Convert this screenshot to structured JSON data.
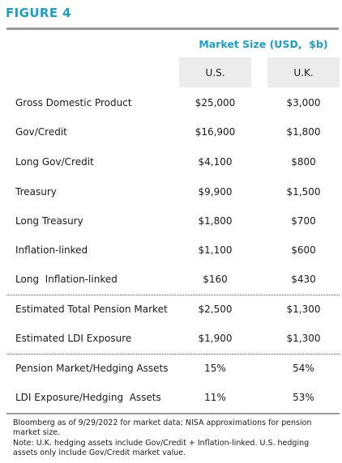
{
  "figure_title": "FIGURE 4",
  "subtitle": "Market Size (USD,  $b)",
  "columns": {
    "us": "U.S.",
    "uk": "U.K."
  },
  "rows": [
    {
      "label": "Gross Domestic Product",
      "us": "$25,000",
      "uk": "$3,000"
    },
    {
      "label": "Gov/Credit",
      "us": "$16,900",
      "uk": "$1,800"
    },
    {
      "label": "Long Gov/Credit",
      "us": "$4,100",
      "uk": "$800"
    },
    {
      "label": "Treasury",
      "us": "$9,900",
      "uk": "$1,500"
    },
    {
      "label": "Long Treasury",
      "us": "$1,800",
      "uk": "$700"
    },
    {
      "label": "Inflation-linked",
      "us": "$1,100",
      "uk": "$600"
    },
    {
      "label": "Long  Inflation-linked",
      "us": "$160",
      "uk": "$430"
    },
    {
      "label": "Estimated Total Pension Market",
      "us": "$2,500",
      "uk": "$1,300"
    },
    {
      "label": "Estimated LDI Exposure",
      "us": "$1,900",
      "uk": "$1,300"
    },
    {
      "label": "Pension Market/Hedging Assets",
      "us": "15%",
      "uk": "54%"
    },
    {
      "label": "LDI Exposure/Hedging  Assets",
      "us": "11%",
      "uk": "53%"
    }
  ],
  "footnotes": [
    "Bloomberg as of 9/29/2022 for market data; NISA approximations for pension market size.",
    "Note: U.K. hedging assets include Gov/Credit + Inflation-linked. U.S. hedging assets only include Gov/Credit market value."
  ]
}
